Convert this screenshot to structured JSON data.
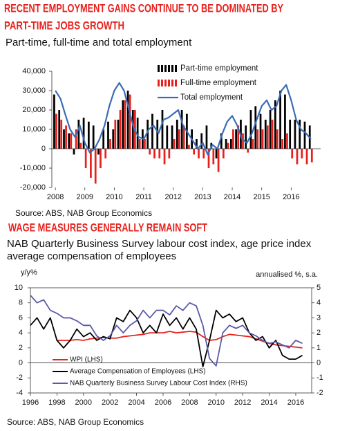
{
  "chart_data": [
    {
      "type": "bar",
      "title": [
        "RECENT EMPLOYMENT GAINS CONTINUE TO BE DOMINATED BY",
        "PART-TIME JOBS GROWTH"
      ],
      "subtitle": "Part-time, full-time and total employment",
      "source": "Source: ABS, NAB Group Economics",
      "legend": "top",
      "x": [
        2008,
        2008.17,
        2008.33,
        2008.5,
        2008.67,
        2008.83,
        2009,
        2009.17,
        2009.33,
        2009.5,
        2009.67,
        2009.83,
        2010,
        2010.17,
        2010.33,
        2010.5,
        2010.67,
        2010.83,
        2011,
        2011.17,
        2011.33,
        2011.5,
        2011.67,
        2011.83,
        2012,
        2012.17,
        2012.33,
        2012.5,
        2012.67,
        2012.83,
        2013,
        2013.17,
        2013.33,
        2013.5,
        2013.67,
        2013.83,
        2014,
        2014.17,
        2014.33,
        2014.5,
        2014.67,
        2014.83,
        2015,
        2015.17,
        2015.33,
        2015.5,
        2015.67,
        2015.83,
        2016,
        2016.17,
        2016.33,
        2016.5,
        2016.67
      ],
      "xlim": [
        2007.88,
        2017
      ],
      "xticks": [
        2008,
        2009,
        2010,
        2011,
        2012,
        2013,
        2014,
        2015,
        2016
      ],
      "ylim": [
        -20000,
        40000
      ],
      "yticks": [
        {
          "value": -20000,
          "label": "-20,000"
        },
        {
          "value": -10000,
          "label": "-10,000"
        },
        0,
        {
          "value": 10000,
          "label": "10,000"
        },
        {
          "value": 20000,
          "label": "20,000"
        },
        {
          "value": 30000,
          "label": "30,000"
        },
        {
          "value": 40000,
          "label": "40,000"
        }
      ],
      "series": [
        {
          "name": "Part-time employment",
          "color": "#000000",
          "type": "bar",
          "values": [
            28000,
            20000,
            10000,
            8000,
            -3000,
            15000,
            16000,
            14000,
            12000,
            -3000,
            10000,
            14000,
            10000,
            15000,
            25000,
            30000,
            20000,
            16000,
            10000,
            15000,
            18000,
            15000,
            20000,
            12000,
            12000,
            15000,
            20000,
            18000,
            10000,
            5000,
            8000,
            12000,
            3000,
            -5000,
            8000,
            5000,
            5000,
            10000,
            15000,
            12000,
            20000,
            22000,
            18000,
            15000,
            20000,
            25000,
            30000,
            28000,
            15000,
            15000,
            15000,
            14000,
            12000
          ]
        },
        {
          "name": "Full-time employment",
          "color": "#e8211d",
          "type": "bar",
          "values": [
            18000,
            15000,
            12000,
            8000,
            10000,
            3000,
            -10000,
            -15000,
            -18000,
            -10000,
            -5000,
            5000,
            15000,
            20000,
            25000,
            28000,
            20000,
            5000,
            5000,
            -3000,
            -5000,
            -5000,
            -8000,
            -5000,
            5000,
            10000,
            12000,
            2000,
            -3000,
            -5000,
            -5000,
            -10000,
            -8000,
            -12000,
            -5000,
            3000,
            10000,
            12000,
            8000,
            -2000,
            5000,
            10000,
            10000,
            12000,
            15000,
            10000,
            5000,
            8000,
            -5000,
            -8000,
            -5000,
            -8000,
            -7000
          ]
        },
        {
          "name": "Total employment",
          "color": "#3a6bb5",
          "type": "line",
          "values": [
            30000,
            26000,
            18000,
            10000,
            6000,
            12000,
            3000,
            -2000,
            0,
            5000,
            12000,
            22000,
            30000,
            34000,
            30000,
            20000,
            10000,
            6000,
            5000,
            10000,
            12000,
            8000,
            15000,
            16000,
            18000,
            20000,
            12000,
            8000,
            4000,
            0,
            3000,
            -3000,
            2000,
            0,
            8000,
            14000,
            17000,
            12000,
            5000,
            3000,
            8000,
            15000,
            22000,
            25000,
            20000,
            22000,
            30000,
            33000,
            25000,
            15000,
            10000,
            8000,
            5000
          ]
        }
      ]
    },
    {
      "type": "line",
      "title": "WAGE MEASURES GENERALLY REMAIN SOFT",
      "subtitle": [
        "NAB Quarterly Business Survey labour cost index, age price index",
        "average compensation of employees"
      ],
      "y_label": "y/y%",
      "y2_label": "annualised %, s.a.",
      "source": "Source: ABS, NAB Group Economics",
      "legend": "bottom-left",
      "x": [
        1996,
        1996.5,
        1997,
        1997.5,
        1998,
        1998.5,
        1999,
        1999.5,
        2000,
        2000.5,
        2001,
        2001.5,
        2002,
        2002.5,
        2003,
        2003.5,
        2004,
        2004.5,
        2005,
        2005.5,
        2006,
        2006.5,
        2007,
        2007.5,
        2008,
        2008.5,
        2009,
        2009.5,
        2010,
        2010.5,
        2011,
        2011.5,
        2012,
        2012.5,
        2013,
        2013.5,
        2014,
        2014.5,
        2015,
        2015.5,
        2016,
        2016.5
      ],
      "xlim": [
        1996,
        2017.2
      ],
      "xticks": [
        1996,
        1998,
        2000,
        2002,
        2004,
        2006,
        2008,
        2010,
        2012,
        2014,
        2016
      ],
      "ylim": [
        -4,
        10
      ],
      "yticks": [
        -4,
        -2,
        0,
        2,
        4,
        6,
        8,
        10
      ],
      "y2lim": [
        -2,
        5
      ],
      "y2ticks": [
        -2,
        -1,
        0,
        1,
        2,
        3,
        4,
        5
      ],
      "series": [
        {
          "name": "WPI (LHS)",
          "color": "#e8211d",
          "values": [
            null,
            null,
            null,
            null,
            3.0,
            3.0,
            3.0,
            3.1,
            3.0,
            3.2,
            3.3,
            3.4,
            3.3,
            3.3,
            3.5,
            3.6,
            3.7,
            3.8,
            4.0,
            4.0,
            4.0,
            4.2,
            4.0,
            4.1,
            4.2,
            4.1,
            3.5,
            3.0,
            3.1,
            3.5,
            3.8,
            3.7,
            3.6,
            3.5,
            3.2,
            2.9,
            2.6,
            2.4,
            2.3,
            2.2,
            2.1,
            2.0
          ]
        },
        {
          "name": "Average Compensation of Employees (LHS)",
          "color": "#000000",
          "values": [
            5.0,
            6.0,
            4.5,
            6.0,
            3.0,
            2.0,
            3.0,
            4.5,
            3.5,
            4.0,
            3.0,
            3.5,
            3.2,
            6.0,
            5.5,
            7.0,
            6.0,
            4.0,
            5.0,
            4.0,
            6.5,
            5.0,
            6.0,
            4.5,
            6.0,
            4.5,
            -0.5,
            3.0,
            7.0,
            6.0,
            6.5,
            5.5,
            6.0,
            4.0,
            3.0,
            3.5,
            2.0,
            3.0,
            1.0,
            0.5,
            0.5,
            1.0
          ]
        },
        {
          "name": "NAB Quarterly Business Survey Labour Cost Index (RHS)",
          "color": "#5a5aa8",
          "axis": "y2",
          "values": [
            4.5,
            4.0,
            4.2,
            3.5,
            3.3,
            3.0,
            3.0,
            2.8,
            2.5,
            2.5,
            1.8,
            1.5,
            1.8,
            2.5,
            2.0,
            2.5,
            2.8,
            3.5,
            3.0,
            3.5,
            3.5,
            3.2,
            3.8,
            3.5,
            4.0,
            3.8,
            2.5,
            0.3,
            -0.2,
            2.0,
            2.5,
            2.3,
            2.5,
            2.0,
            1.8,
            1.5,
            1.3,
            1.4,
            1.2,
            1.0,
            1.5,
            1.3
          ]
        }
      ]
    }
  ]
}
